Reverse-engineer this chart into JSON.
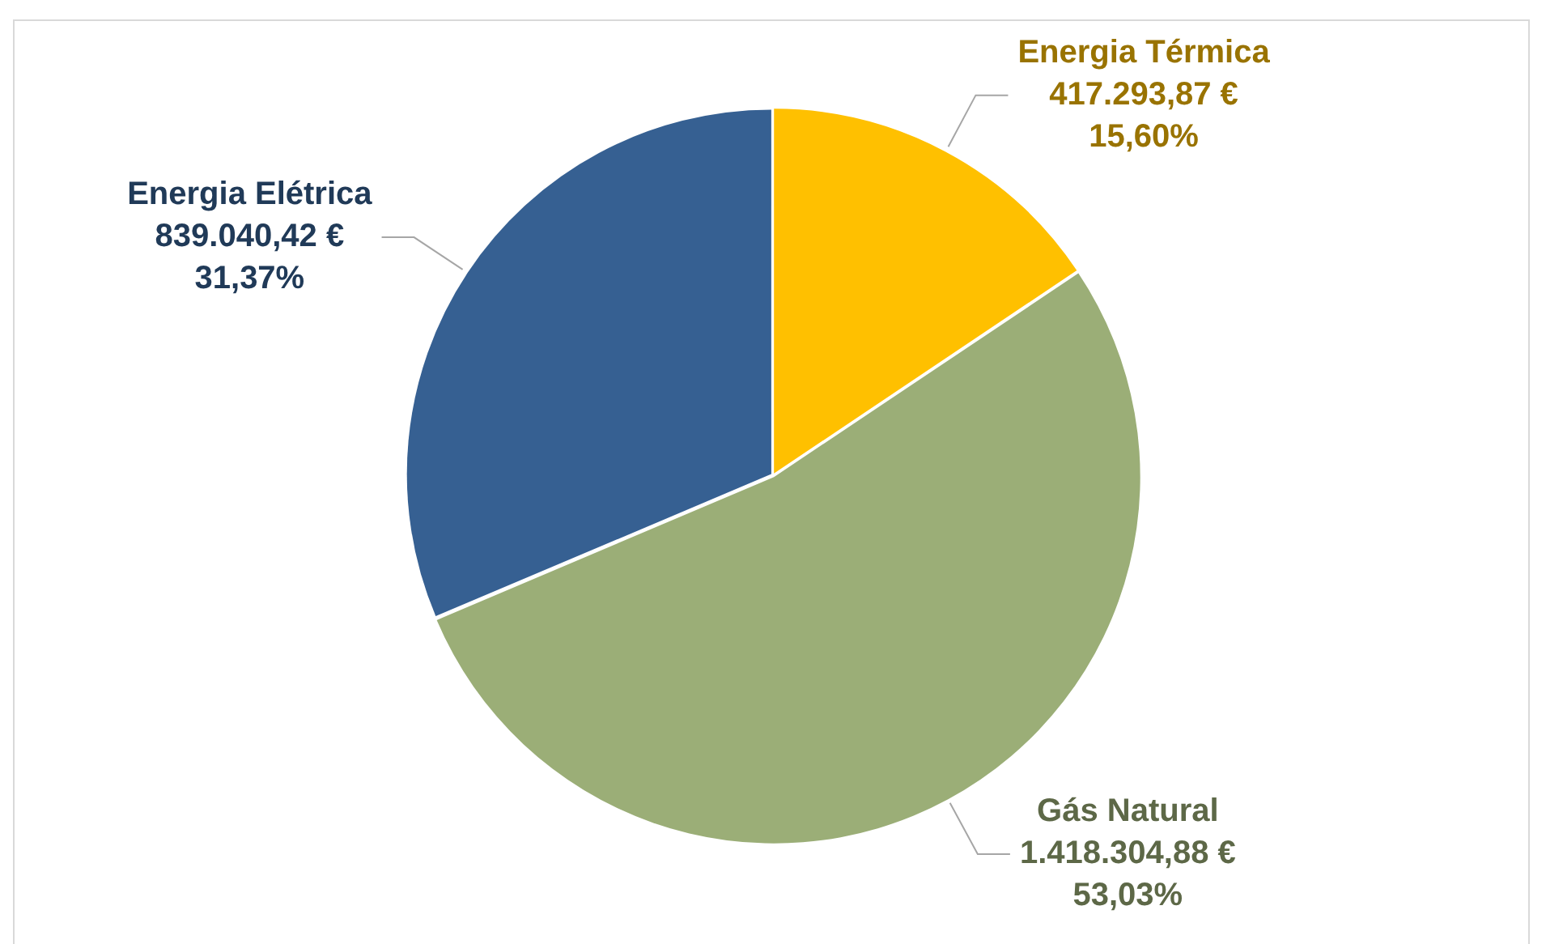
{
  "chart_data": {
    "type": "pie",
    "categories": [
      "Energia Térmica",
      "Gás Natural",
      "Energia Elétrica"
    ],
    "values": [
      417293.87,
      1418304.88,
      839040.42
    ],
    "colors": [
      "#ffc000",
      "#9bae77",
      "#366092"
    ],
    "value_labels": [
      "417.293,87 €\n15,60%",
      "1.418.304,88 €\n53,03%",
      "839.040,42 €\n31,37%"
    ],
    "legend": false
  }
}
